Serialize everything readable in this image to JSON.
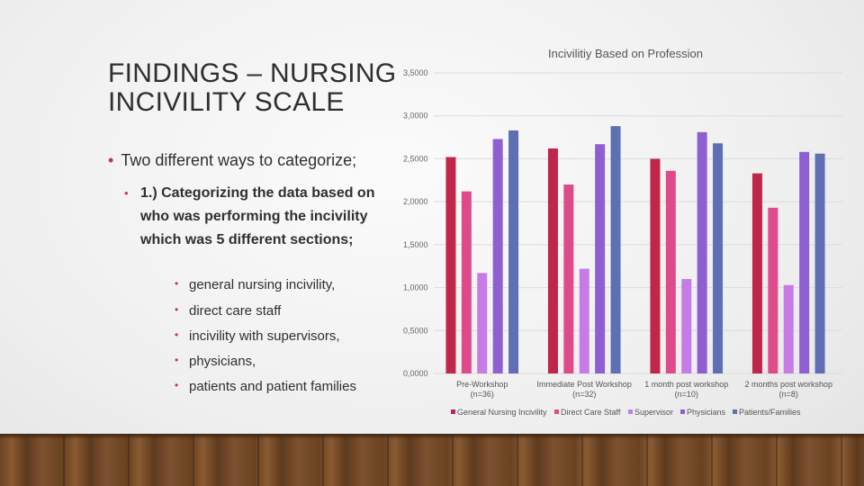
{
  "slide": {
    "title_line1": "FINDINGS – NURSING",
    "title_line2": "INCIVILITY SCALE",
    "bullet1": "Two different ways to categorize;",
    "bullet2": "1.) Categorizing the data based on who was performing the incivility which was 5 different sections;",
    "sub_bullets": [
      "general nursing incivility,",
      "direct care staff",
      "incivility with supervisors,",
      "physicians,",
      "patients and patient families"
    ]
  },
  "chart_data": {
    "type": "bar",
    "title": "Incivilitiy Based on Profession",
    "categories": [
      [
        "Pre-Workshop",
        "(n=36)"
      ],
      [
        "Immediate Post Workshop",
        "(n=32)"
      ],
      [
        "1 month post workshop",
        "(n=10)"
      ],
      [
        "2 months post workshop",
        "(n=8)"
      ]
    ],
    "series": [
      {
        "name": "General Nursing Incivility",
        "color": "#c0254a",
        "values": [
          2.52,
          2.62,
          2.5,
          2.33
        ]
      },
      {
        "name": "Direct Care Staff",
        "color": "#df4a8a",
        "values": [
          2.12,
          2.2,
          2.36,
          1.93
        ]
      },
      {
        "name": "Supervisor",
        "color": "#c67be8",
        "values": [
          1.17,
          1.22,
          1.1,
          1.03
        ]
      },
      {
        "name": "Physicians",
        "color": "#8d5fd0",
        "values": [
          2.73,
          2.67,
          2.81,
          2.58
        ]
      },
      {
        "name": "Patients/Families",
        "color": "#5e6fb3",
        "values": [
          2.83,
          2.88,
          2.68,
          2.56
        ]
      }
    ],
    "y_ticks": [
      "0,0000",
      "0,5000",
      "1,0000",
      "1,5000",
      "2,0000",
      "2,5000",
      "3,0000",
      "3,5000"
    ],
    "ylim": [
      0,
      3.5
    ],
    "grid": true,
    "legend": "bottom"
  }
}
